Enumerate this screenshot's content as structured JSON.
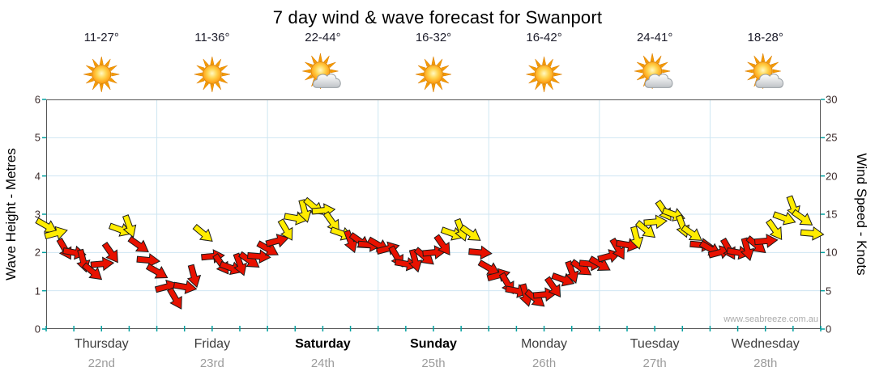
{
  "title": "7 day wind & wave forecast for Swanport",
  "watermark": "www.seabreeze.com.au",
  "axes": {
    "left_label": "Wave Height - Metres",
    "right_label": "Wind Speed - Knots",
    "left_ticks": [
      0,
      1,
      2,
      3,
      4,
      5,
      6
    ],
    "right_ticks": [
      0,
      5,
      10,
      15,
      20,
      25,
      30
    ]
  },
  "days": [
    {
      "name": "Thursday",
      "date": "22nd",
      "temps": "11-27°",
      "icon": "sunny",
      "weekend": false
    },
    {
      "name": "Friday",
      "date": "23rd",
      "temps": "11-36°",
      "icon": "sunny",
      "weekend": false
    },
    {
      "name": "Saturday",
      "date": "24th",
      "temps": "22-44°",
      "icon": "partly-cloudy",
      "weekend": true
    },
    {
      "name": "Sunday",
      "date": "25th",
      "temps": "16-32°",
      "icon": "sunny",
      "weekend": true
    },
    {
      "name": "Monday",
      "date": "26th",
      "temps": "16-42°",
      "icon": "sunny",
      "weekend": false
    },
    {
      "name": "Tuesday",
      "date": "27th",
      "temps": "24-41°",
      "icon": "partly-cloudy",
      "weekend": false
    },
    {
      "name": "Wednesday",
      "date": "28th",
      "temps": "18-28°",
      "icon": "partly-cloudy",
      "weekend": false
    }
  ],
  "chart_data": {
    "type": "wind-arrows",
    "x_unit": "hours_from_start",
    "x_range": [
      0,
      168
    ],
    "wave_axis": {
      "min": 0,
      "max": 6,
      "unit": "metres"
    },
    "wind_speed_axis": {
      "min": 0,
      "max": 30,
      "unit": "knots"
    },
    "color_rule": {
      "red_below_knots": 12,
      "yellow_at_or_above": 12
    },
    "colors": {
      "red": "#e81100",
      "yellow": "#ffec00",
      "outline": "#1a1a1a",
      "grid": "#cfe6f2",
      "tick": "#00a0a0",
      "border": "#555555"
    },
    "legend": "each arrow = wind speed (knots) and direction",
    "points": [
      [
        0,
        13.5,
        30
      ],
      [
        2,
        12.5,
        -15
      ],
      [
        4,
        10.5,
        60
      ],
      [
        6,
        10,
        10
      ],
      [
        8,
        9,
        75
      ],
      [
        10,
        7.5,
        40
      ],
      [
        12,
        8.5,
        -5
      ],
      [
        14,
        10,
        55
      ],
      [
        16,
        13,
        20
      ],
      [
        18,
        13.5,
        70
      ],
      [
        20,
        11,
        35
      ],
      [
        22,
        9,
        5
      ],
      [
        24,
        7.5,
        30
      ],
      [
        26,
        5.5,
        -15
      ],
      [
        28,
        4,
        60
      ],
      [
        30,
        5.5,
        10
      ],
      [
        32,
        7,
        75
      ],
      [
        34,
        12.5,
        40
      ],
      [
        36,
        9.5,
        -5
      ],
      [
        38,
        8.5,
        55
      ],
      [
        40,
        8,
        20
      ],
      [
        42,
        8.5,
        70
      ],
      [
        44,
        9,
        35
      ],
      [
        46,
        9.5,
        5
      ],
      [
        48,
        10.5,
        30
      ],
      [
        50,
        11.5,
        -15
      ],
      [
        52,
        13,
        60
      ],
      [
        54,
        14.5,
        10
      ],
      [
        56,
        15.5,
        75
      ],
      [
        58,
        16,
        40
      ],
      [
        60,
        15.5,
        -5
      ],
      [
        62,
        14,
        55
      ],
      [
        64,
        12.5,
        20
      ],
      [
        66,
        11.5,
        70
      ],
      [
        68,
        11.5,
        35
      ],
      [
        70,
        11,
        5
      ],
      [
        72,
        11,
        30
      ],
      [
        74,
        10.5,
        -15
      ],
      [
        76,
        9.5,
        60
      ],
      [
        78,
        8.5,
        10
      ],
      [
        80,
        9,
        75
      ],
      [
        82,
        9.5,
        40
      ],
      [
        84,
        10,
        -5
      ],
      [
        86,
        11,
        55
      ],
      [
        88,
        12.5,
        20
      ],
      [
        90,
        13,
        70
      ],
      [
        92,
        12.5,
        35
      ],
      [
        94,
        10,
        5
      ],
      [
        96,
        8,
        30
      ],
      [
        98,
        7,
        -15
      ],
      [
        100,
        6,
        60
      ],
      [
        102,
        5,
        10
      ],
      [
        104,
        4.5,
        75
      ],
      [
        106,
        4,
        40
      ],
      [
        108,
        4.5,
        -5
      ],
      [
        110,
        5.5,
        55
      ],
      [
        112,
        6.5,
        20
      ],
      [
        114,
        7.5,
        70
      ],
      [
        116,
        8,
        35
      ],
      [
        118,
        8.5,
        5
      ],
      [
        120,
        8.5,
        30
      ],
      [
        122,
        9.5,
        -15
      ],
      [
        124,
        10.5,
        60
      ],
      [
        126,
        11,
        10
      ],
      [
        128,
        12,
        75
      ],
      [
        130,
        13,
        40
      ],
      [
        132,
        14,
        -5
      ],
      [
        134,
        15.5,
        55
      ],
      [
        136,
        15,
        20
      ],
      [
        138,
        13.5,
        70
      ],
      [
        140,
        12.5,
        35
      ],
      [
        142,
        11,
        5
      ],
      [
        144,
        10.5,
        30
      ],
      [
        146,
        10,
        -15
      ],
      [
        148,
        10.5,
        60
      ],
      [
        150,
        10,
        10
      ],
      [
        152,
        10.5,
        75
      ],
      [
        154,
        11,
        40
      ],
      [
        156,
        11.5,
        -5
      ],
      [
        158,
        13,
        55
      ],
      [
        160,
        14.5,
        20
      ],
      [
        162,
        16,
        70
      ],
      [
        164,
        14.5,
        35
      ],
      [
        166,
        12.5,
        5
      ]
    ]
  }
}
